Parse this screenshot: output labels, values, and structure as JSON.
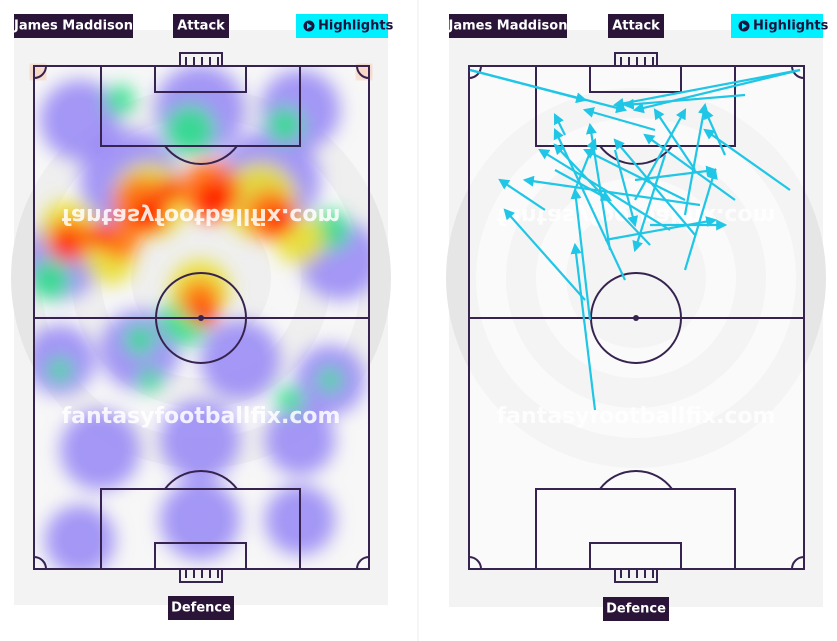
{
  "panels": [
    {
      "player": "James Maddison",
      "top_label": "Attack",
      "highlights": "Highlights",
      "bottom_label": "Defence",
      "watermark": "fantasyfootballfix.com"
    },
    {
      "player": "James Maddison",
      "top_label": "Attack",
      "highlights": "Highlights",
      "bottom_label": "Defence",
      "watermark": "fantasyfootballfix.com"
    }
  ]
}
